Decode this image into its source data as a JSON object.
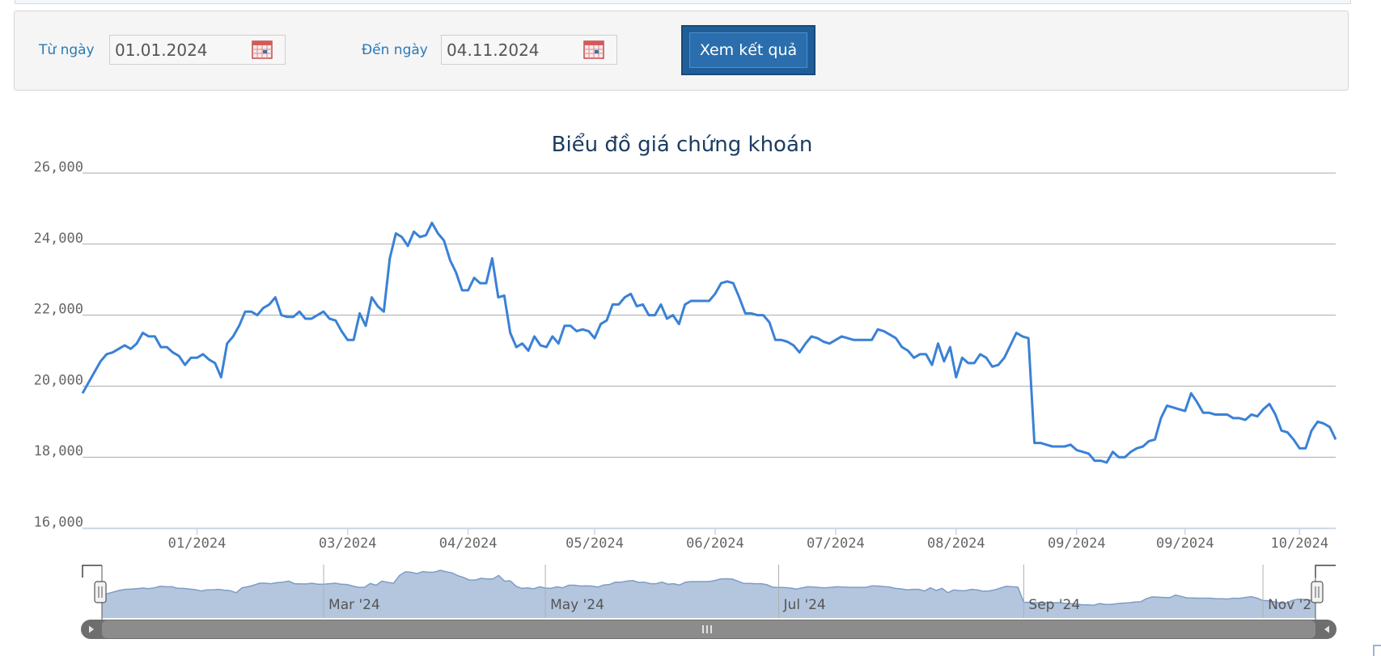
{
  "filter": {
    "from_label": "Từ ngày",
    "from_value": "01.01.2024",
    "to_label": "Đến ngày",
    "to_value": "04.11.2024",
    "submit_label": "Xem kết quả"
  },
  "colors": {
    "line": "#3a81d6",
    "nav_fill": "#b4c6de",
    "nav_line": "#7f9cc6",
    "button": "#1f5e99",
    "label_blue": "#2a7ab5"
  },
  "chart_data": {
    "type": "line",
    "title": "Biểu đồ giá chứng khoán",
    "xlabel": "",
    "ylabel": "",
    "ylim": [
      16000,
      26000
    ],
    "y_ticks": [
      "16,000",
      "18,000",
      "20,000",
      "22,000",
      "24,000",
      "26,000"
    ],
    "y_tick_values": [
      16000,
      18000,
      20000,
      22000,
      24000,
      26000
    ],
    "x_ticks": [
      "01/2024",
      "03/2024",
      "04/2024",
      "05/2024",
      "06/2024",
      "07/2024",
      "08/2024",
      "09/2024",
      "09/2024",
      "10/2024"
    ],
    "x_tick_indices": [
      19,
      44,
      64,
      85,
      105,
      125,
      145,
      165,
      183,
      202
    ],
    "grid": true,
    "series": [
      {
        "values": [
          19800,
          20100,
          20400,
          20700,
          20900,
          20950,
          21050,
          21150,
          21050,
          21200,
          21500,
          21400,
          21400,
          21100,
          21100,
          20950,
          20850,
          20600,
          20800,
          20800,
          20900,
          20750,
          20650,
          20250,
          21200,
          21400,
          21700,
          22100,
          22100,
          22000,
          22200,
          22300,
          22500,
          22000,
          21950,
          21950,
          22100,
          21900,
          21900,
          22000,
          22100,
          21900,
          21850,
          21550,
          21300,
          21300,
          22050,
          21700,
          22500,
          22250,
          22100,
          23600,
          24300,
          24200,
          23950,
          24350,
          24200,
          24250,
          24600,
          24300,
          24100,
          23550,
          23200,
          22700,
          22700,
          23050,
          22900,
          22900,
          23600,
          22500,
          22550,
          21500,
          21100,
          21200,
          21000,
          21400,
          21150,
          21100,
          21400,
          21200,
          21700,
          21700,
          21550,
          21600,
          21550,
          21350,
          21750,
          21850,
          22300,
          22300,
          22500,
          22600,
          22250,
          22300,
          22000,
          22000,
          22300,
          21900,
          22000,
          21750,
          22300,
          22400,
          22400,
          22400,
          22400,
          22600,
          22900,
          22950,
          22900,
          22500,
          22050,
          22050,
          22000,
          22000,
          21800,
          21300,
          21300,
          21250,
          21150,
          20950,
          21200,
          21400,
          21350,
          21250,
          21200,
          21300,
          21400,
          21350,
          21300,
          21300,
          21300,
          21300,
          21600,
          21550,
          21450,
          21350,
          21100,
          21000,
          20800,
          20900,
          20900,
          20600,
          21200,
          20700,
          21100,
          20250,
          20800,
          20650,
          20650,
          20900,
          20800,
          20550,
          20600,
          20800,
          21150,
          21500,
          21400,
          21350,
          18400,
          18400,
          18350,
          18300,
          18300,
          18300,
          18350,
          18200,
          18150,
          18100,
          17900,
          17900,
          17850,
          18150,
          18000,
          18000,
          18150,
          18250,
          18300,
          18450,
          18500,
          19100,
          19450,
          19400,
          19350,
          19300,
          19800,
          19550,
          19250,
          19250,
          19200,
          19200,
          19200,
          19100,
          19100,
          19050,
          19200,
          19150,
          19350,
          19500,
          19200,
          18750,
          18700,
          18500,
          18250,
          18250,
          18750,
          19000,
          18950,
          18850,
          18500
        ]
      }
    ],
    "navigator": {
      "labels": [
        "Mar '24",
        "May '24",
        "Jul '24",
        "Sep '24",
        "Nov '2"
      ],
      "label_indices": [
        38,
        76,
        116,
        158,
        199
      ]
    }
  }
}
